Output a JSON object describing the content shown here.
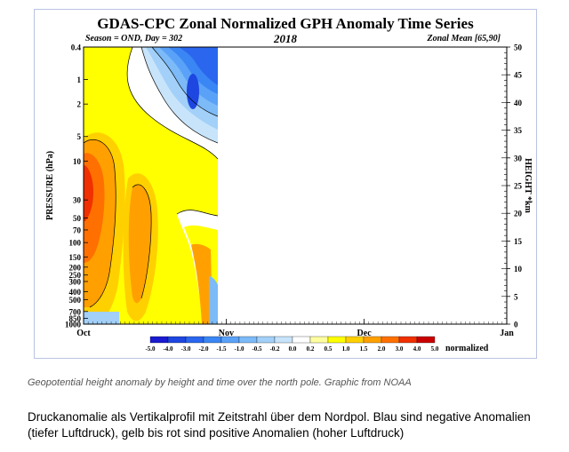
{
  "chart_data": {
    "type": "heatmap",
    "title": "GDAS-CPC Zonal Normalized GPH Anomaly Time Series",
    "season_label": "Season = OND, Day = 302",
    "year": "2018",
    "zonal_label": "Zonal Mean [65,90]",
    "ylabel_left": "PRESSURE (hPa)",
    "ylabel_right": "HEIGHT *km",
    "x_ticks": [
      "Oct",
      "Nov",
      "Dec",
      "Jan"
    ],
    "pressure_ticks": [
      "0.4",
      "1",
      "2",
      "5",
      "10",
      "30",
      "50",
      "70",
      "100",
      "150",
      "200",
      "250",
      "300",
      "400",
      "500",
      "700",
      "850",
      "1000"
    ],
    "height_ticks": [
      0,
      5,
      10,
      15,
      20,
      25,
      30,
      35,
      40,
      45,
      50
    ],
    "colorbar": {
      "levels": [
        "-5.0",
        "-4.0",
        "-3.0",
        "-2.0",
        "-1.5",
        "-1.0",
        "-0.5",
        "-0.2",
        "0.0",
        "0.2",
        "0.5",
        "1.0",
        "1.5",
        "2.0",
        "3.0",
        "4.0",
        "5.0"
      ],
      "colors": [
        "#1a1ad0",
        "#1e46e0",
        "#2a66ee",
        "#3a86f4",
        "#5aa2f8",
        "#7cbaf8",
        "#a2d0f8",
        "#c8e4fb",
        "#ffffff",
        "#ffffa0",
        "#ffff00",
        "#ffd000",
        "#ffa000",
        "#ff7000",
        "#f03000",
        "#c80000"
      ],
      "unit_label": "normalized"
    },
    "data_extent_days": 32,
    "total_days": 92
  },
  "caption": "Geopotential height anomaly by height and time over the north pole. Graphic from NOAA",
  "description": "Druckanomalie als Vertikalprofil mit Zeitstrahl über dem Nordpol. Blau sind negative Anomalien (tiefer Luftdruck), gelb bis rot sind positive Anomalien (hoher Luftdruck)"
}
